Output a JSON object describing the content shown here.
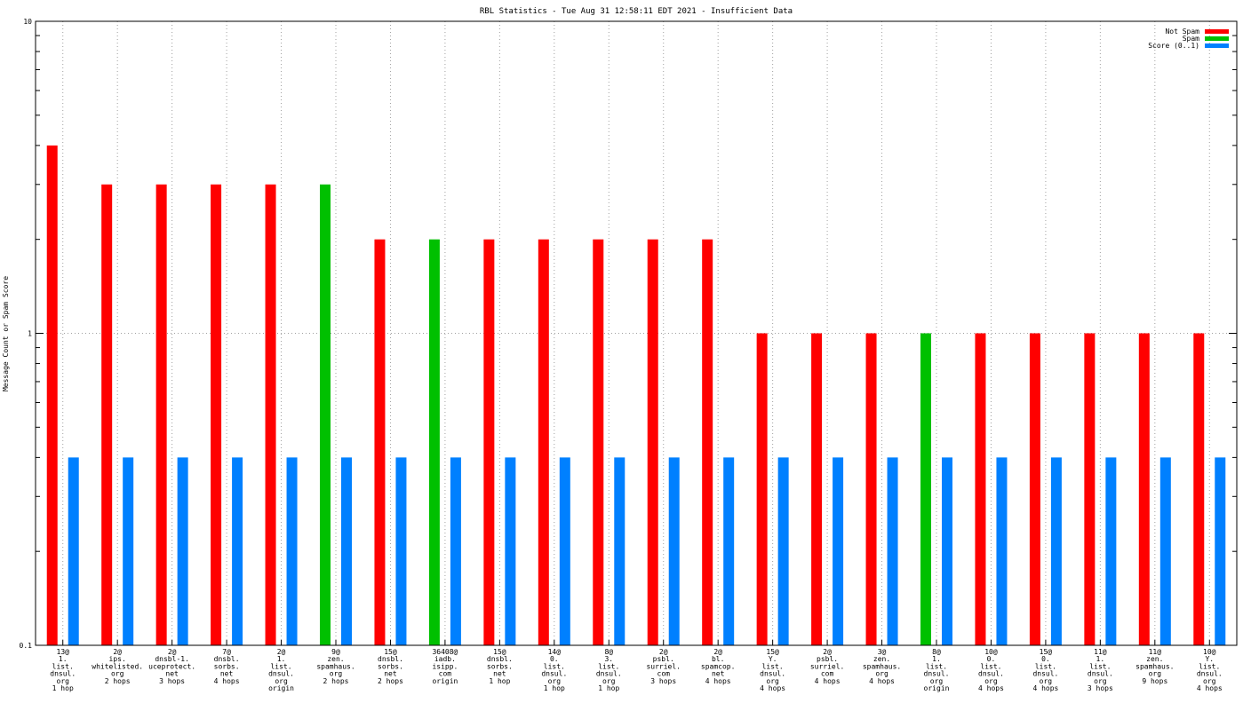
{
  "chart_data": {
    "type": "bar",
    "title": "RBL Statistics - Tue Aug 31 12:58:11 EDT 2021 - Insufficient Data",
    "ylabel": "Message Count or Spam Score",
    "xlabel": "",
    "yscale": "log",
    "ylim": [
      0.1,
      10
    ],
    "ytick_labels": [
      "0.1",
      "1",
      "10"
    ],
    "grid": true,
    "legend_position": "top-right",
    "colors": {
      "not_spam": "#ff0000",
      "spam": "#00c000",
      "score": "#0080ff"
    },
    "categories": [
      [
        "13@",
        "1.",
        "list.",
        "dnsul.",
        "org",
        "1 hop"
      ],
      [
        "2@",
        "ips.",
        "whitelisted.",
        "org",
        "2 hops"
      ],
      [
        "2@",
        "dnsbl-1.",
        "uceprotect.",
        "net",
        "3 hops"
      ],
      [
        "7@",
        "dnsbl.",
        "sorbs.",
        "net",
        "4 hops"
      ],
      [
        "2@",
        "1.",
        "list.",
        "dnsul.",
        "org",
        "origin"
      ],
      [
        "9@",
        "zen.",
        "spamhaus.",
        "org",
        "2 hops"
      ],
      [
        "15@",
        "dnsbl.",
        "sorbs.",
        "net",
        "2 hops"
      ],
      [
        "36408@",
        "iadb.",
        "isipp.",
        "com",
        "origin"
      ],
      [
        "15@",
        "dnsbl.",
        "sorbs.",
        "net",
        "1 hop"
      ],
      [
        "14@",
        "0.",
        "list.",
        "dnsul.",
        "org",
        "1 hop"
      ],
      [
        "8@",
        "3.",
        "list.",
        "dnsul.",
        "org",
        "1 hop"
      ],
      [
        "2@",
        "psbl.",
        "surriel.",
        "com",
        "3 hops"
      ],
      [
        "2@",
        "bl.",
        "spamcop.",
        "net",
        "4 hops"
      ],
      [
        "15@",
        "Y.",
        "list.",
        "dnsul.",
        "org",
        "4 hops"
      ],
      [
        "2@",
        "psbl.",
        "surriel.",
        "com",
        "4 hops"
      ],
      [
        "3@",
        "zen.",
        "spamhaus.",
        "org",
        "4 hops"
      ],
      [
        "8@",
        "1.",
        "list.",
        "dnsul.",
        "org",
        "origin"
      ],
      [
        "10@",
        "0.",
        "list.",
        "dnsul.",
        "org",
        "4 hops"
      ],
      [
        "15@",
        "0.",
        "list.",
        "dnsul.",
        "org",
        "4 hops"
      ],
      [
        "11@",
        "1.",
        "list.",
        "dnsul.",
        "org",
        "3 hops"
      ],
      [
        "11@",
        "zen.",
        "spamhaus.",
        "org",
        "9 hops"
      ],
      [
        "10@",
        "Y.",
        "list.",
        "dnsul.",
        "org",
        "4 hops"
      ]
    ],
    "series": [
      {
        "name": "Not Spam",
        "color": "#ff0000",
        "values": [
          4,
          3,
          3,
          3,
          3,
          null,
          2,
          null,
          2,
          2,
          2,
          2,
          2,
          1,
          1,
          1,
          null,
          1,
          1,
          1,
          1,
          1
        ]
      },
      {
        "name": "Spam",
        "color": "#00c000",
        "values": [
          null,
          null,
          null,
          null,
          null,
          3,
          null,
          2,
          null,
          null,
          null,
          null,
          null,
          null,
          null,
          null,
          1,
          null,
          null,
          null,
          null,
          null
        ]
      },
      {
        "name": "Score (0..1)",
        "color": "#0080ff",
        "values": [
          0.4,
          0.4,
          0.4,
          0.4,
          0.4,
          0.4,
          0.4,
          0.4,
          0.4,
          0.4,
          0.4,
          0.4,
          0.4,
          0.4,
          0.4,
          0.4,
          0.4,
          0.4,
          0.4,
          0.4,
          0.4,
          0.4
        ]
      }
    ]
  }
}
